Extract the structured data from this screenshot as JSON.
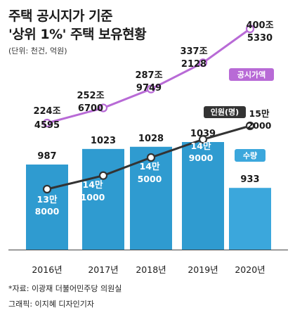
{
  "title_line1": "주택 공시지가 기준",
  "title_line2": "'상위 1%' 주택 보유현황",
  "unit": "(단위: 천건, 억원)",
  "source": "*자료: 이광재 더불어민주당 의원실",
  "credit": "그래픽: 이지혜 디자인기자",
  "chart_data": {
    "type": "bar",
    "categories": [
      "2016년",
      "2017년",
      "2018년",
      "2019년",
      "2020년"
    ],
    "series": [
      {
        "name": "수량",
        "type": "bar",
        "values": [
          987,
          1023,
          1028,
          1039,
          933
        ],
        "labels": [
          "987",
          "1023",
          "1028",
          "1039",
          "933"
        ],
        "color_bars": "#2f9bd0",
        "color_last": "#3ba7dc"
      },
      {
        "name": "인원(명)",
        "type": "line",
        "values": [
          138000,
          141000,
          145000,
          149000,
          152000
        ],
        "labels": [
          [
            "13만",
            "8000"
          ],
          [
            "14만",
            "1000"
          ],
          [
            "14만",
            "5000"
          ],
          [
            "14만",
            "9000"
          ],
          [
            "15만",
            "2000"
          ]
        ],
        "color": "#333333"
      },
      {
        "name": "공시가액",
        "type": "line",
        "values": [
          2244595,
          2526700,
          2879749,
          3372128,
          4005330
        ],
        "labels": [
          [
            "224조",
            "4595"
          ],
          [
            "252조",
            "6700"
          ],
          [
            "287조",
            "9749"
          ],
          [
            "337조",
            "2128"
          ],
          [
            "400조",
            "5330"
          ]
        ],
        "color": "#b86ad6"
      }
    ],
    "bar_ylim": [
      0,
      1100
    ],
    "grid": false
  }
}
